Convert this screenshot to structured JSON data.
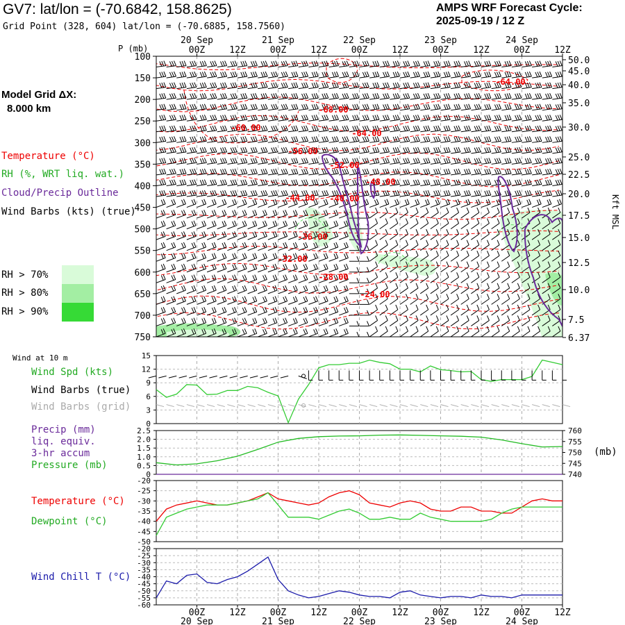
{
  "header": {
    "title": "GV7:  lat/lon = (-70.6842, 158.8625)",
    "subtitle": "Grid Point (328, 604) lat/lon = (-70.6885, 158.7560)",
    "cycle_label": "AMPS WRF Forecast Cycle:",
    "cycle_value": "2025-09-19 / 12  Z"
  },
  "side": {
    "model_grid_label": "Model Grid ΔX:",
    "model_grid_value": "8.000 km",
    "temperature_legend": "Temperature (°C)",
    "rh_legend": "RH (%, WRT liq. wat.)",
    "cloud_legend": "Cloud/Precip Outline",
    "wind_legend": "Wind Barbs (kts) (true)",
    "rh_boxes": [
      {
        "label": "RH > 70%",
        "color": "#d9fbd9"
      },
      {
        "label": "RH > 80%",
        "color": "#a3eea3"
      },
      {
        "label": "RH > 90%",
        "color": "#36da36"
      }
    ]
  },
  "colors": {
    "temperature": "#ee0000",
    "rh": "#33cc33",
    "cloud": "#6a2a9a",
    "wind": "#000000",
    "wind_grid": "#aaaaaa",
    "pressure": "#22bb22",
    "wind_chill": "#1a1aaa"
  },
  "chart_data": [
    {
      "type": "heatmap",
      "name": "upper_air_cross_section",
      "x_axis": {
        "top_dates": [
          "20 Sep",
          "21 Sep",
          "22 Sep",
          "23 Sep",
          "24 Sep"
        ],
        "top_hours": [
          "00Z",
          "12Z",
          "00Z",
          "12Z",
          "00Z",
          "12Z",
          "00Z",
          "12Z",
          "00Z",
          "12Z"
        ],
        "forecast_hours_range": [
          0,
          120
        ]
      },
      "y_axis": {
        "label": "P (mb)",
        "ticks": [
          "100",
          "150",
          "200",
          "250",
          "300",
          "350",
          "400",
          "450",
          "500",
          "550",
          "600",
          "650",
          "700",
          "750"
        ],
        "ylim": [
          750,
          100
        ]
      },
      "right_axis": {
        "label": "Kft MSL",
        "ticks": [
          "50.0",
          "45.0",
          "40.0",
          "35.0",
          "30.0",
          "25.0",
          "22.5",
          "20.0",
          "17.5",
          "15.0",
          "12.5",
          "10.0",
          "7.5",
          "6.37"
        ]
      },
      "temperature_contour_labels": [
        "-64.00",
        "-68.00",
        "-60.00",
        "-64.00",
        "-56.00",
        "-52.00",
        "-48.00",
        "-44.00",
        "-40.00",
        "-36.00",
        "-32.00",
        "-28.00",
        "-24.00"
      ]
    },
    {
      "type": "line",
      "name": "surface_wind",
      "panel_title": "Wind at 10 m",
      "legend": [
        "Wind Spd (kts)",
        "Wind Barbs (true)",
        "Wind Barbs (grid)"
      ],
      "y_ticks": [
        "15",
        "12",
        "9",
        "6",
        "3",
        "0"
      ],
      "ylim": [
        0,
        15
      ],
      "x": [
        0,
        3,
        6,
        9,
        12,
        15,
        18,
        21,
        24,
        27,
        30,
        33,
        36,
        39,
        42,
        45,
        48,
        51,
        54,
        57,
        60,
        63,
        66,
        69,
        72,
        75,
        78,
        81,
        84,
        87,
        90,
        93,
        96,
        99,
        102,
        105,
        108,
        111,
        114,
        117,
        120
      ],
      "series": [
        {
          "name": "Wind Spd (kts)",
          "values": [
            7.5,
            5.8,
            6.5,
            8.6,
            8.5,
            6.4,
            6.5,
            7.3,
            7.3,
            8.2,
            7.9,
            6.9,
            6.1,
            0.2,
            5.4,
            8.6,
            12.3,
            13.0,
            13.0,
            13.3,
            13.3,
            14.0,
            13.5,
            13.2,
            12.0,
            12.0,
            11.4,
            12.7,
            11.9,
            11.7,
            11.4,
            11.5,
            9.7,
            9.3,
            9.7,
            9.7,
            9.7,
            10.4,
            14.0,
            13.5,
            13.0
          ]
        }
      ],
      "dewpoint_marker": 10.5,
      "grid_marker": 4.0
    },
    {
      "type": "line",
      "name": "precip_pressure",
      "legend": [
        "Precip (mm)",
        "liq. equiv.",
        "3-hr accum",
        "Pressure (mb)"
      ],
      "y_ticks": [
        "2.5",
        "2.0",
        "1.5",
        "1.0",
        "0.5",
        "0"
      ],
      "ylim": [
        0,
        2.5
      ],
      "right_ticks": [
        "760",
        "755",
        "750",
        "745",
        "740"
      ],
      "right_ylim": [
        740,
        760
      ],
      "right_label": "(mb)",
      "x": [
        0,
        6,
        12,
        18,
        24,
        30,
        36,
        42,
        48,
        54,
        60,
        66,
        72,
        78,
        84,
        90,
        96,
        102,
        108,
        114,
        120
      ],
      "series": [
        {
          "name": "Pressure (mb)",
          "values": [
            745.3,
            744.3,
            744.8,
            746.2,
            748.3,
            751.4,
            754.7,
            756.4,
            757.2,
            757.5,
            757.6,
            757.9,
            758.0,
            757.8,
            757.6,
            757.4,
            757.0,
            755.7,
            754.0,
            752.5,
            752.7
          ]
        },
        {
          "name": "Precip (mm)",
          "values": [
            0,
            0,
            0,
            0,
            0,
            0,
            0,
            0,
            0,
            0,
            0,
            0,
            0,
            0,
            0,
            0,
            0,
            0,
            0,
            0,
            0
          ]
        }
      ]
    },
    {
      "type": "line",
      "name": "temperature_dewpoint",
      "legend": [
        "Temperature (°C)",
        "Dewpoint (°C)"
      ],
      "y_ticks": [
        "-20",
        "-25",
        "-30",
        "-35",
        "-40",
        "-45",
        "-50"
      ],
      "ylim": [
        -50,
        -20
      ],
      "x": [
        0,
        3,
        6,
        9,
        12,
        15,
        18,
        21,
        24,
        27,
        30,
        33,
        36,
        39,
        42,
        45,
        48,
        51,
        54,
        57,
        60,
        63,
        66,
        69,
        72,
        75,
        78,
        81,
        84,
        87,
        90,
        93,
        96,
        99,
        102,
        105,
        108,
        111,
        114,
        117,
        120
      ],
      "series": [
        {
          "name": "Temperature (°C)",
          "values": [
            -40,
            -34,
            -32,
            -31,
            -30,
            -31,
            -32,
            -32,
            -31,
            -30,
            -28,
            -26,
            -29,
            -30,
            -31,
            -32,
            -31,
            -28,
            -26,
            -25,
            -27,
            -31,
            -32,
            -33,
            -31,
            -30,
            -31,
            -34,
            -35,
            -35,
            -33,
            -33,
            -35,
            -35,
            -36,
            -36,
            -33,
            -30,
            -29,
            -30,
            -30
          ]
        },
        {
          "name": "Dewpoint (°C)",
          "values": [
            -47,
            -38,
            -36,
            -34,
            -33,
            -32,
            -32,
            -32,
            -31,
            -30,
            -29,
            -26,
            -32,
            -38,
            -38,
            -38,
            -39,
            -37,
            -35,
            -34,
            -36,
            -39,
            -39,
            -38,
            -39,
            -39,
            -36,
            -38,
            -39,
            -40,
            -40,
            -40,
            -40,
            -39,
            -36,
            -34,
            -33,
            -33,
            -33,
            -33,
            -33
          ]
        }
      ]
    },
    {
      "type": "line",
      "name": "wind_chill",
      "legend": [
        "Wind Chill T (°C)"
      ],
      "y_ticks": [
        "-20",
        "-25",
        "-30",
        "-35",
        "-40",
        "-45",
        "-50",
        "-55",
        "-60"
      ],
      "ylim": [
        -60,
        -20
      ],
      "x": [
        0,
        3,
        6,
        9,
        12,
        15,
        18,
        21,
        24,
        27,
        30,
        33,
        36,
        39,
        42,
        45,
        48,
        51,
        54,
        57,
        60,
        63,
        66,
        69,
        72,
        75,
        78,
        81,
        84,
        87,
        90,
        93,
        96,
        99,
        102,
        105,
        108,
        111,
        114,
        117,
        120
      ],
      "series": [
        {
          "name": "Wind Chill T (°C)",
          "values": [
            -55,
            -43,
            -45,
            -39,
            -38,
            -44,
            -45,
            -42,
            -40,
            -36,
            -31,
            -26,
            -42,
            -50,
            -53,
            -55,
            -54,
            -52,
            -50,
            -51,
            -53,
            -54,
            -54,
            -55,
            -51,
            -50,
            -53,
            -54,
            -55,
            -54,
            -54,
            -55,
            -53,
            -54,
            -54,
            -55,
            -53,
            -53,
            -53,
            -53,
            -53
          ]
        }
      ]
    }
  ],
  "panels": {
    "wind_title": "Wind at 10 m",
    "bottom_hours": [
      "00Z",
      "12Z",
      "00Z",
      "12Z",
      "00Z",
      "12Z",
      "00Z",
      "12Z",
      "00Z",
      "12Z"
    ],
    "bottom_dates": [
      "20 Sep",
      "21 Sep",
      "22 Sep",
      "23 Sep",
      "24 Sep"
    ]
  }
}
